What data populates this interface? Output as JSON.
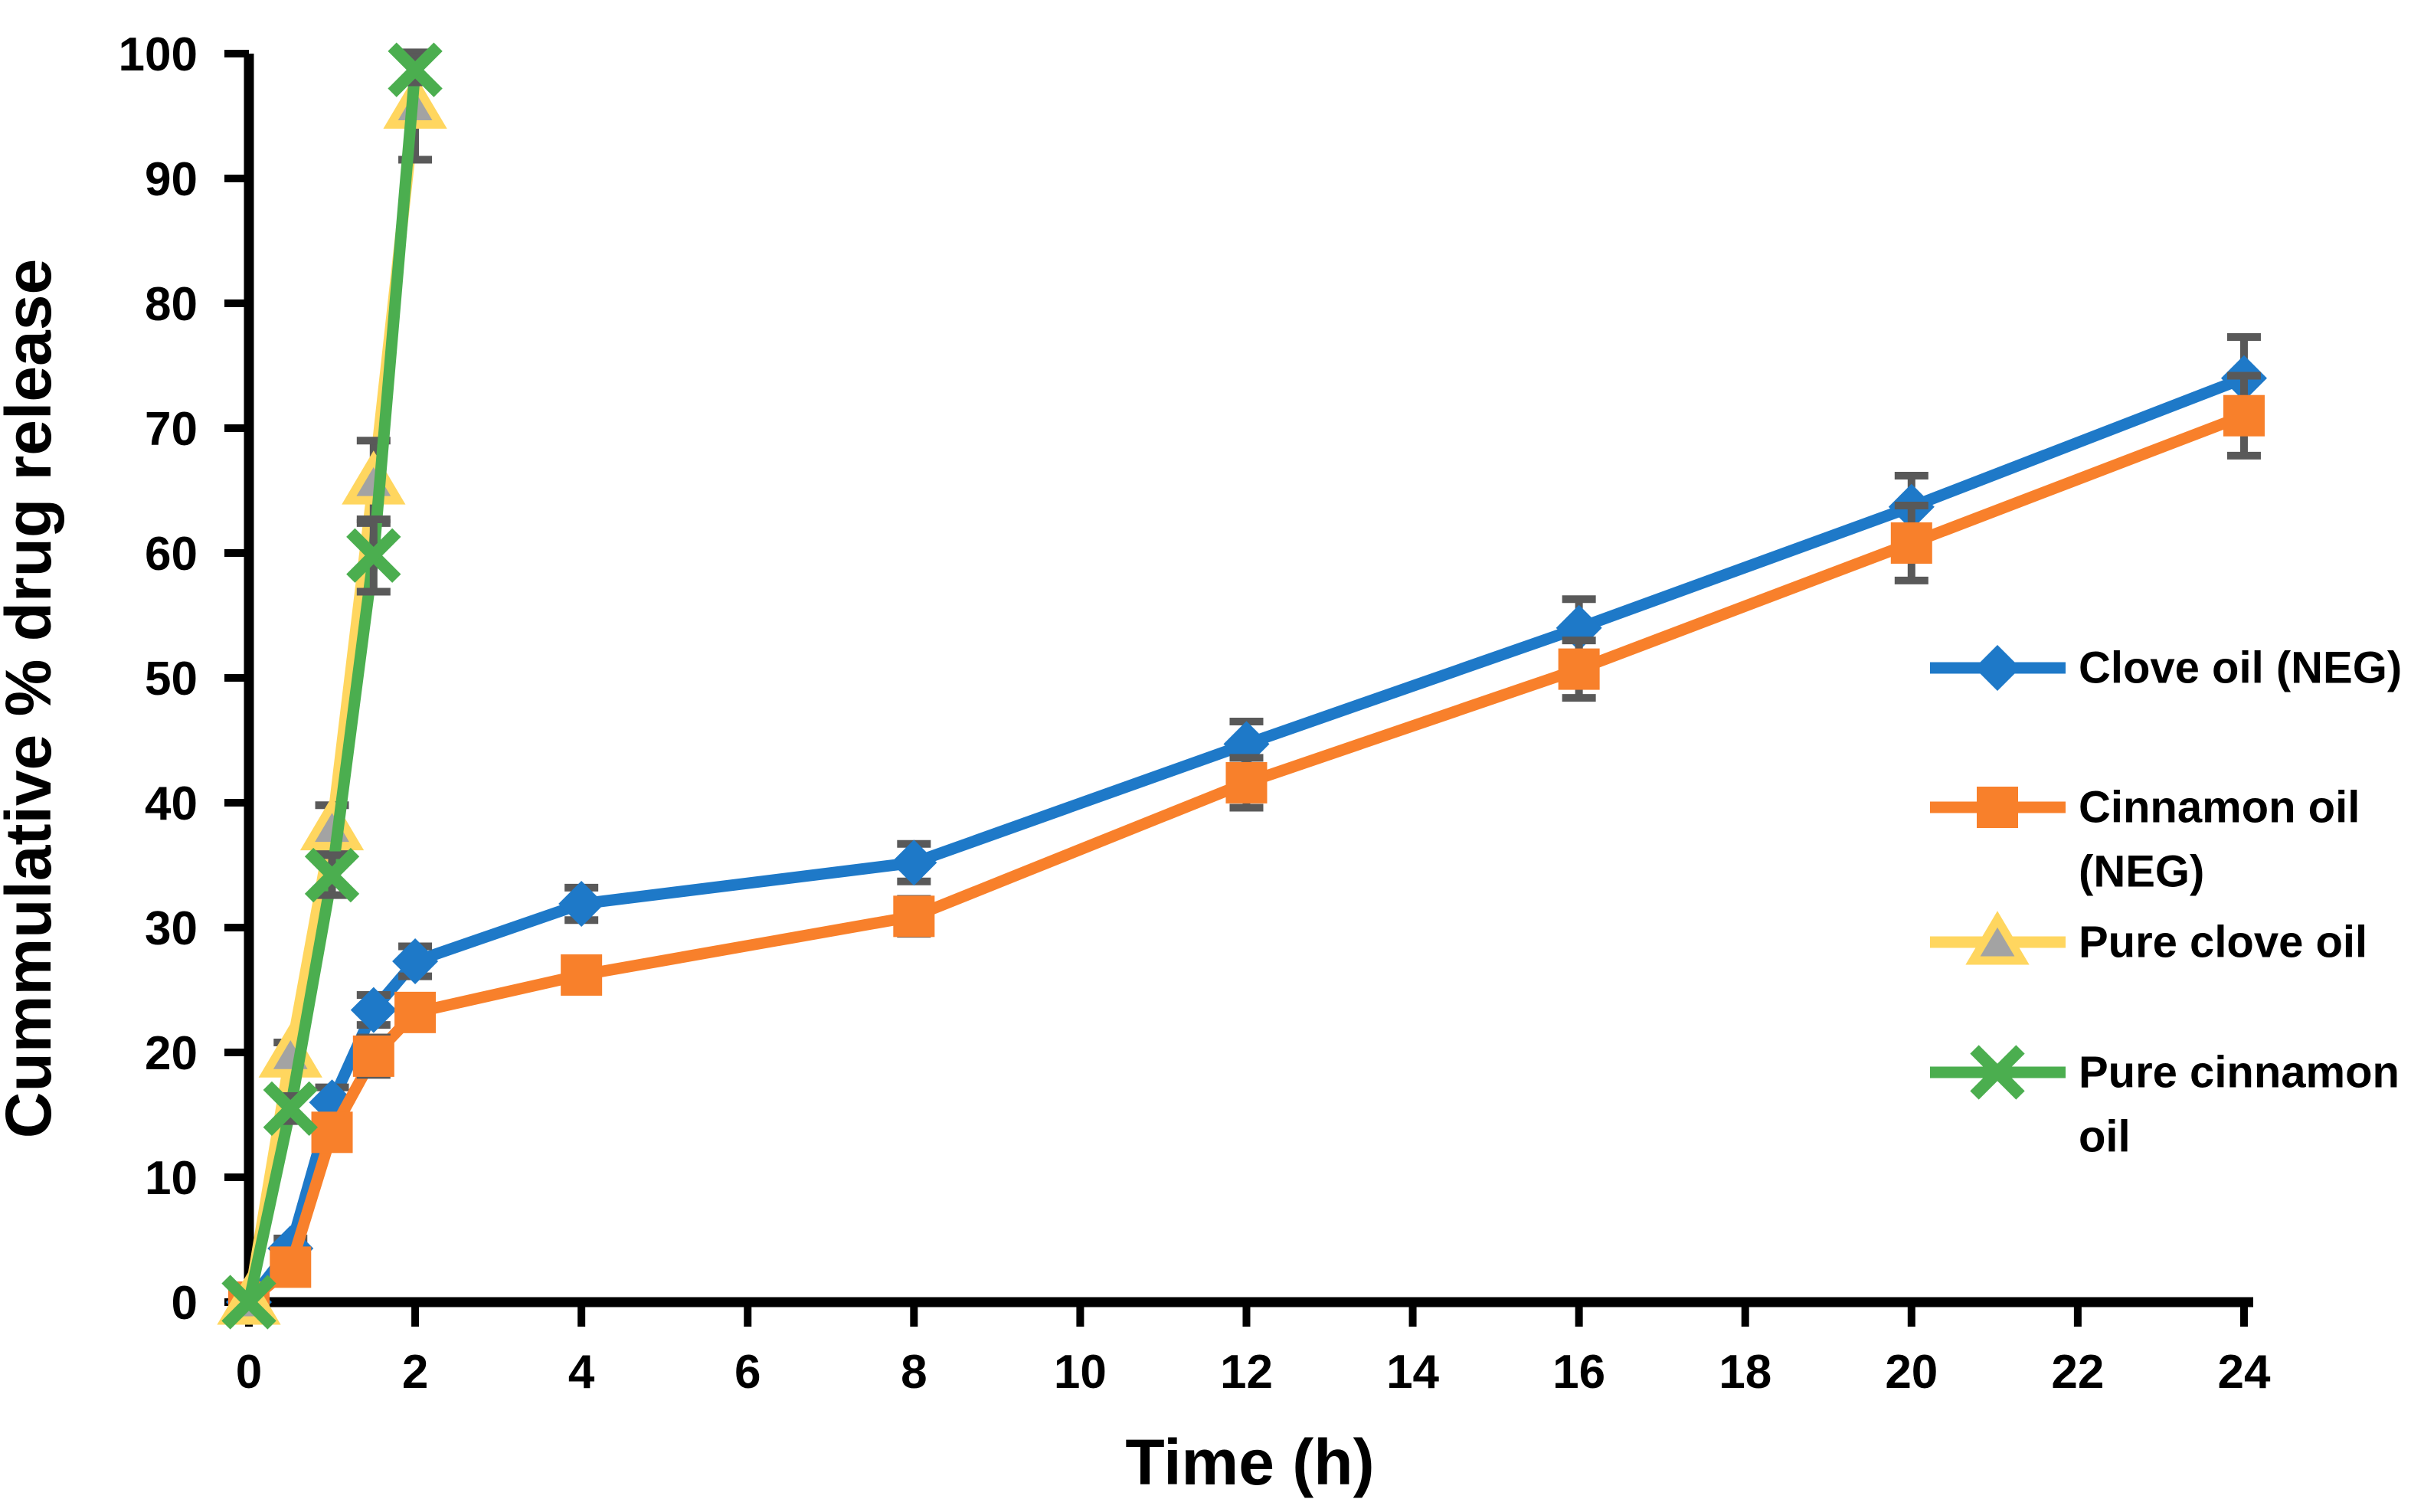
{
  "chart_data": {
    "type": "line",
    "title": "",
    "xlabel": "Time (h)",
    "ylabel": "Cummulative % drug release",
    "xlim": [
      0,
      24
    ],
    "ylim": [
      0,
      100
    ],
    "x_ticks": [
      0,
      2,
      4,
      6,
      8,
      10,
      12,
      14,
      16,
      18,
      20,
      22,
      24
    ],
    "y_ticks": [
      0,
      10,
      20,
      30,
      40,
      50,
      60,
      70,
      80,
      90,
      100
    ],
    "grid": false,
    "legend_position": "right",
    "background_color": "#FFFFFF",
    "axis_color": "#000000",
    "error_bar_color": "#595959",
    "series": [
      {
        "name": "Clove oil (NEG)",
        "legend_lines": [
          "Clove oil (NEG)"
        ],
        "color": "#1E79C8",
        "marker": "diamond",
        "x": [
          0,
          0.5,
          1,
          1.5,
          2,
          4,
          8,
          12,
          16,
          20,
          24
        ],
        "y": [
          0,
          4.3,
          16,
          23.4,
          27.3,
          31.9,
          35.2,
          44.7,
          54,
          63.7,
          74
        ],
        "yerr": [
          0,
          0.8,
          1.2,
          1.2,
          1.2,
          1.3,
          1.5,
          1.8,
          2.3,
          2.5,
          3.3
        ]
      },
      {
        "name": "Cinnamon oil (NEG)",
        "legend_lines": [
          "Cinnamon oil",
          "(NEG)"
        ],
        "color": "#F8802B",
        "marker": "square",
        "x": [
          0,
          0.5,
          1,
          1.5,
          2,
          4,
          8,
          12,
          16,
          20,
          24
        ],
        "y": [
          0,
          2.8,
          13.6,
          19.7,
          23.2,
          26.2,
          30.9,
          41.6,
          50.7,
          60.8,
          71
        ],
        "yerr": [
          0,
          0.8,
          1.2,
          1.5,
          1.2,
          1.2,
          1.4,
          2,
          2.3,
          3,
          3.2
        ]
      },
      {
        "name": "Pure clove oil",
        "legend_lines": [
          "Pure clove oil"
        ],
        "color": "#FFD65F",
        "marker": "triangle",
        "marker_fill": "#A3A3A3",
        "x": [
          0,
          0.5,
          1,
          1.5,
          2
        ],
        "y": [
          0,
          19.8,
          38,
          65.7,
          95.8
        ],
        "yerr": [
          0,
          1,
          1.8,
          3.3,
          4.3
        ]
      },
      {
        "name": "Pure cinnamon oil",
        "legend_lines": [
          "Pure cinnamon",
          "oil"
        ],
        "color": "#4BAE4F",
        "marker": "x",
        "x": [
          0,
          0.5,
          1,
          1.5,
          2
        ],
        "y": [
          0,
          15.5,
          34.2,
          59.8,
          98.7
        ],
        "yerr": [
          0,
          1,
          1.6,
          2.9,
          1
        ]
      }
    ]
  }
}
